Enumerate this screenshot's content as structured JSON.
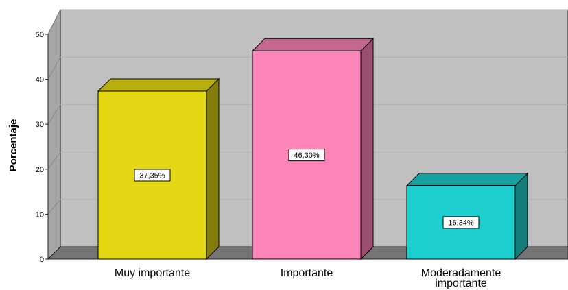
{
  "chart_data": {
    "type": "bar",
    "style": "3d",
    "title": "",
    "xlabel": "",
    "ylabel": "Porcentaje",
    "ylim": [
      0,
      50
    ],
    "yticks": [
      0,
      10,
      20,
      30,
      40,
      50
    ],
    "ytick_labels": [
      "0",
      "10",
      "20",
      "30",
      "40",
      "50"
    ],
    "grid": true,
    "categories": [
      [
        "Muy importante"
      ],
      [
        "Importante"
      ],
      [
        "Moderadamente",
        "importante"
      ]
    ],
    "values": [
      37.35,
      46.3,
      16.34
    ],
    "data_labels": [
      "37,35%",
      "46,30%",
      "16,34%"
    ],
    "colors": {
      "bars_front": [
        "#e4d814",
        "#fd85b8",
        "#1ecfcf"
      ],
      "bars_side": [
        "#847d0c",
        "#9a4f6e",
        "#137d7c"
      ],
      "bars_top": [
        "#b8ae10",
        "#c46890",
        "#189f9f"
      ],
      "plot_back": "#c0c0c0",
      "plot_floor": "#757575",
      "plot_side": "#a6a6a6",
      "gridline": "#b0b0b0"
    }
  }
}
